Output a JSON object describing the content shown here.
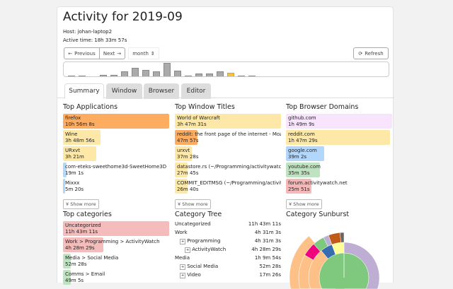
{
  "title": "Activity for 2019-09",
  "host": "Host: johan-laptop2",
  "active_time": "Active time: 18h 33m 57s",
  "controls": {
    "previous": "Previous",
    "next": "Next",
    "period": "month",
    "refresh": "Refresh"
  },
  "timeline": {
    "relative_activity": [
      1,
      1,
      0,
      2,
      2,
      7,
      11,
      9,
      7,
      18,
      8,
      1,
      4,
      4,
      7,
      5,
      1,
      1
    ],
    "highlighted_index": 15,
    "bar_color": "#aaaaaa",
    "highlight_color": "#f5c342"
  },
  "tabs": [
    "Summary",
    "Window",
    "Browser",
    "Editor"
  ],
  "top_applications": {
    "title": "Top Applications",
    "items": [
      {
        "name": "firefox",
        "time": "10h 56m 8s",
        "frac": 1.0,
        "color": "#fdac60"
      },
      {
        "name": "Wine",
        "time": "3h 48m 56s",
        "frac": 0.35,
        "color": "#fde8a8"
      },
      {
        "name": "URxvt",
        "time": "3h 21m",
        "frac": 0.31,
        "color": "#fde8a8"
      },
      {
        "name": "com-eteks-sweethome3d-SweetHome3D",
        "time": "19m 1s",
        "frac": 0.03,
        "color": "#b3d7fb"
      },
      {
        "name": "Mixxx",
        "time": "5m 20s",
        "frac": 0.01,
        "color": "#b3d7fb"
      }
    ],
    "more": "Show more"
  },
  "top_window_titles": {
    "title": "Top Window Titles",
    "items": [
      {
        "name": "World of Warcraft",
        "time": "3h 47m 31s",
        "frac": 1.0,
        "color": "#fde8a8"
      },
      {
        "name": "reddit: the front page of the internet - Mozilla",
        "time": "47m 57s",
        "frac": 0.21,
        "color": "#fdac60"
      },
      {
        "name": "urxvt",
        "time": "37m 28s",
        "frac": 0.16,
        "color": "#fde8a8"
      },
      {
        "name": "datastore.rs (~/Programming/activitywatch/aw",
        "time": "27m 45s",
        "frac": 0.12,
        "color": "#fde8a8"
      },
      {
        "name": "COMMIT_EDITMSG (~/Programming/activitywatch",
        "time": "26m 40s",
        "frac": 0.12,
        "color": "#fde8a8"
      }
    ],
    "more": "Show more"
  },
  "top_browser_domains": {
    "title": "Top Browser Domains",
    "items": [
      {
        "name": "github.com",
        "time": "1h 49m 9s",
        "frac": 1.0,
        "color": "#f8e4fd"
      },
      {
        "name": "reddit.com",
        "time": "1h 47m 29s",
        "frac": 0.98,
        "color": "#fde8a8"
      },
      {
        "name": "google.com",
        "time": "39m 2s",
        "frac": 0.36,
        "color": "#b3d7fb"
      },
      {
        "name": "youtube.com",
        "time": "35m 35s",
        "frac": 0.32,
        "color": "#bfe3c0"
      },
      {
        "name": "forum.activitywatch.net",
        "time": "25m 51s",
        "frac": 0.24,
        "color": "#f5b8b8"
      }
    ],
    "more": "Show more"
  },
  "top_categories": {
    "title": "Top categories",
    "items": [
      {
        "name": "Uncategorized",
        "time": "11h 43m 11s",
        "frac": 1.0,
        "color": "#f5bcbc"
      },
      {
        "name": "Work > Programming > ActivityWatch",
        "time": "4h 28m 29s",
        "frac": 0.38,
        "color": "#f5bcbc"
      },
      {
        "name": "Media > Social Media",
        "time": "52m 28s",
        "frac": 0.07,
        "color": "#bfe3c0"
      },
      {
        "name": "Comms > Email",
        "time": "49m 5s",
        "frac": 0.07,
        "color": "#bfe3c0"
      }
    ]
  },
  "category_tree": {
    "title": "Category Tree",
    "rows": [
      {
        "name": "Uncategorized",
        "time": "11h 43m 11s",
        "level": 0
      },
      {
        "name": "Work",
        "time": "4h 31m 3s",
        "level": 0
      },
      {
        "name": "Programming",
        "time": "4h 31m 3s",
        "level": 1
      },
      {
        "name": "ActivityWatch",
        "time": "4h 28m 29s",
        "level": 2
      },
      {
        "name": "Media",
        "time": "1h 9m 54s",
        "level": 0
      },
      {
        "name": "Social Media",
        "time": "52m 28s",
        "level": 1
      },
      {
        "name": "Video",
        "time": "17m 26s",
        "level": 1
      }
    ]
  },
  "sunburst": {
    "title": "Category Sunburst",
    "colors": [
      "#7fc97f",
      "#beaed4",
      "#fdc086",
      "#ffff99",
      "#386cb0",
      "#f0027f",
      "#bf5b17",
      "#666666"
    ]
  }
}
